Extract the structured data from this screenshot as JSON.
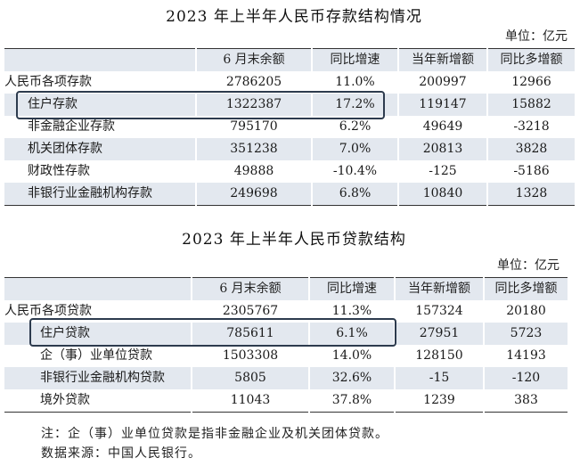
{
  "deposits": {
    "title": "2023 年上半年人民币存款结构情况",
    "unit": "单位：亿元",
    "headers": [
      "",
      "6 月末余额",
      "同比增速",
      "当年新增额",
      "同比多增额"
    ],
    "rows": [
      {
        "label": "人民币各项存款",
        "balance": "2786205",
        "growth": "11.0%",
        "new_added": "200997",
        "yoy_extra": "12966"
      },
      {
        "label": "住户存款",
        "balance": "1322387",
        "growth": "17.2%",
        "new_added": "119147",
        "yoy_extra": "15882"
      },
      {
        "label": "非金融企业存款",
        "balance": "795170",
        "growth": "6.2%",
        "new_added": "49649",
        "yoy_extra": "-3218"
      },
      {
        "label": "机关团体存款",
        "balance": "351238",
        "growth": "7.0%",
        "new_added": "20813",
        "yoy_extra": "3828"
      },
      {
        "label": "财政性存款",
        "balance": "49888",
        "growth": "-10.4%",
        "new_added": "-125",
        "yoy_extra": "-5186"
      },
      {
        "label": "非银行业金融机构存款",
        "balance": "249698",
        "growth": "6.8%",
        "new_added": "10840",
        "yoy_extra": "1328"
      }
    ]
  },
  "loans": {
    "title": "2023 年上半年人民币贷款结构",
    "unit": "单位：亿元",
    "headers": [
      "",
      "6 月末余额",
      "同比增速",
      "当年新增额",
      "同比多增额"
    ],
    "rows": [
      {
        "label": "人民币各项贷款",
        "balance": "2305767",
        "growth": "11.3%",
        "new_added": "157324",
        "yoy_extra": "20180"
      },
      {
        "label": "住户贷款",
        "balance": "785611",
        "growth": "6.1%",
        "new_added": "27951",
        "yoy_extra": "5723"
      },
      {
        "label": "企（事）业单位贷款",
        "balance": "1503308",
        "growth": "14.0%",
        "new_added": "128150",
        "yoy_extra": "14193"
      },
      {
        "label": "非银行业金融机构贷款",
        "balance": "5805",
        "growth": "32.6%",
        "new_added": "-15",
        "yoy_extra": "-120"
      },
      {
        "label": "境外贷款",
        "balance": "11043",
        "growth": "37.8%",
        "new_added": "1239",
        "yoy_extra": "383"
      }
    ]
  },
  "notes": {
    "note": "注：企（事）业单位贷款是指非金融企业及机关团体贷款。",
    "source": "数据来源：中国人民银行。"
  },
  "colors": {
    "header_fill": "#e3e8ef",
    "row_shade": "#e3e8ef",
    "highlight_border": "#2d3b4e"
  }
}
